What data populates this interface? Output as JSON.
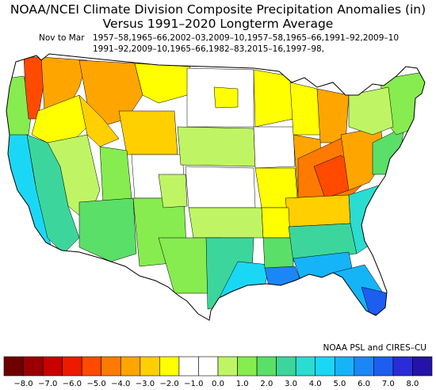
{
  "title_line1": "NOAA/NCEI Climate Division Composite Precipitation Anomalies (in)",
  "title_line2": "Versus 1991–2020 Longterm Average",
  "period_label": "Nov to Mar",
  "years_line1": "1957–58,1965–66,2002–03,2009–10,1957–58,1965–66,1991–92,2009–10",
  "years_line2": "1991–92,2009–10,1965–66,1982–83,2015–16,1997–98,",
  "credit": "NOAA PSL and CIRES–CU",
  "colorbar": {
    "ticks": [
      "−8.0",
      "−7.0",
      "−6.0",
      "−5.0",
      "−4.0",
      "−3.0",
      "−2.0",
      "−1.0",
      "0.0",
      "1.0",
      "2.0",
      "3.0",
      "4.0",
      "5.0",
      "6.0",
      "7.0",
      "8.0"
    ],
    "colors": [
      "#6e0000",
      "#9a0000",
      "#c80000",
      "#ee1a00",
      "#ff4a00",
      "#ff7a00",
      "#ffa500",
      "#ffcf00",
      "#ffff00",
      "#ffffff",
      "#ffffff",
      "#bff564",
      "#86ec4f",
      "#5adf68",
      "#3cd69c",
      "#2bdcd0",
      "#1ad8f5",
      "#15b4f8",
      "#1b86f5",
      "#1c5ef0",
      "#2a2cd8",
      "#2413a8"
    ]
  },
  "regions": [
    {
      "name": "pacific-northwest-coast",
      "color": "#ff4a00"
    },
    {
      "name": "northern-rockies",
      "color": "#ffa500"
    },
    {
      "name": "ohio-valley",
      "color": "#ff7a00"
    },
    {
      "name": "gulf-coast",
      "color": "#1b86f5"
    },
    {
      "name": "florida",
      "color": "#15b4f8"
    },
    {
      "name": "california-coast",
      "color": "#1ad8f5"
    }
  ]
}
